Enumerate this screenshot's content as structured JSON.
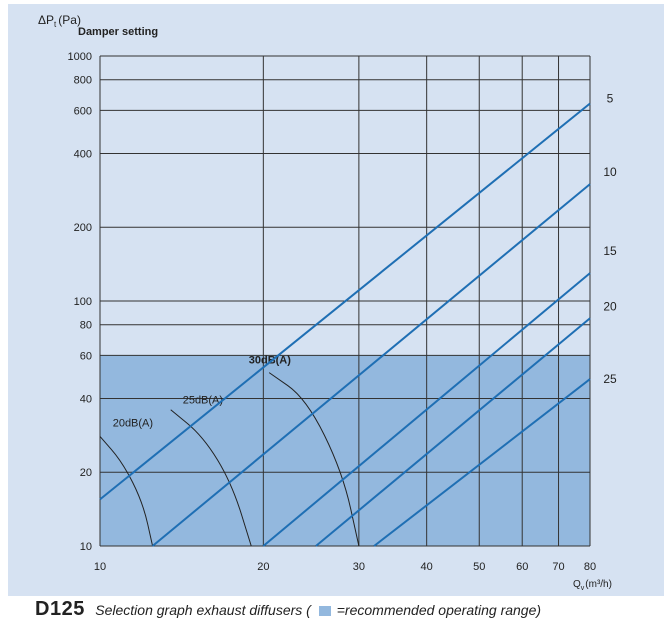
{
  "chart_data": {
    "type": "line",
    "title": "Damper setting",
    "ylabel_main": "ΔP",
    "ylabel_sub": "t",
    "ylabel_unit": "(Pa)",
    "xlabel_main": "Q",
    "xlabel_sub": "v",
    "xlabel_unit": "(m³/h)",
    "x_scale": "log",
    "y_scale": "log",
    "xlim": [
      10,
      80
    ],
    "ylim": [
      10,
      1000
    ],
    "x_ticks": [
      10,
      20,
      30,
      40,
      50,
      60,
      70,
      80
    ],
    "x_tick_labels": [
      "10",
      "20",
      "30",
      "40",
      "50",
      "60",
      "70",
      "80"
    ],
    "y_ticks": [
      10,
      20,
      40,
      60,
      80,
      100,
      200,
      400,
      600,
      800,
      1000
    ],
    "y_tick_labels": [
      "10",
      "20",
      "40",
      "60",
      "80",
      "100",
      "200",
      "400",
      "600",
      "800",
      "1000"
    ],
    "recommended_range": {
      "x": [
        10,
        80
      ],
      "y": [
        10,
        60
      ]
    },
    "series": [
      {
        "name": "5",
        "points": [
          [
            10,
            15.5
          ],
          [
            80,
            640
          ]
        ]
      },
      {
        "name": "10",
        "points": [
          [
            12.5,
            10
          ],
          [
            80,
            300
          ]
        ]
      },
      {
        "name": "15",
        "points": [
          [
            20,
            10
          ],
          [
            80,
            130
          ]
        ]
      },
      {
        "name": "20",
        "points": [
          [
            25,
            10
          ],
          [
            80,
            85
          ]
        ]
      },
      {
        "name": "25",
        "points": [
          [
            32,
            10
          ],
          [
            80,
            48
          ]
        ]
      }
    ],
    "sound_curves": [
      {
        "label": "20dB(A)",
        "points": [
          [
            10,
            28
          ],
          [
            11,
            22
          ],
          [
            12,
            15
          ],
          [
            12.5,
            10
          ]
        ]
      },
      {
        "label": "25dB(A)",
        "points": [
          [
            13.5,
            36
          ],
          [
            15.5,
            28
          ],
          [
            17.5,
            18
          ],
          [
            19,
            10
          ]
        ]
      },
      {
        "label": "30dB(A)",
        "points": [
          [
            20.5,
            51
          ],
          [
            24,
            40
          ],
          [
            28,
            20
          ],
          [
            30,
            10
          ]
        ]
      }
    ]
  },
  "caption": {
    "code": "D125",
    "text_before": "Selection graph exhaust diffusers (",
    "text_after": "=recommended operating range)"
  }
}
